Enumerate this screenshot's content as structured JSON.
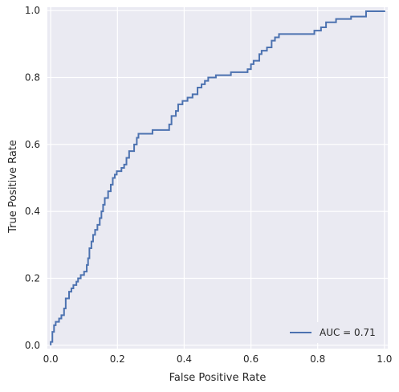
{
  "chart_data": {
    "type": "line",
    "xlabel": "False Positive Rate",
    "ylabel": "True Positive Rate",
    "xlim": [
      -0.01,
      1.01
    ],
    "ylim": [
      -0.01,
      1.01
    ],
    "x_ticks": [
      "0.0",
      "0.2",
      "0.4",
      "0.6",
      "0.8",
      "1.0"
    ],
    "y_ticks": [
      "0.0",
      "0.2",
      "0.4",
      "0.6",
      "0.8",
      "1.0"
    ],
    "grid": true,
    "legend_position": "lower-right",
    "background_color": "#eaeaf2",
    "grid_color": "#ffffff",
    "series": [
      {
        "name": "AUC = 0.71",
        "color": "#4c72b0",
        "points": [
          [
            0.0,
            0.0
          ],
          [
            0.0,
            0.01
          ],
          [
            0.005,
            0.01
          ],
          [
            0.005,
            0.04
          ],
          [
            0.01,
            0.04
          ],
          [
            0.01,
            0.06
          ],
          [
            0.015,
            0.06
          ],
          [
            0.015,
            0.07
          ],
          [
            0.025,
            0.07
          ],
          [
            0.025,
            0.08
          ],
          [
            0.032,
            0.08
          ],
          [
            0.032,
            0.09
          ],
          [
            0.04,
            0.09
          ],
          [
            0.04,
            0.11
          ],
          [
            0.045,
            0.11
          ],
          [
            0.045,
            0.14
          ],
          [
            0.055,
            0.14
          ],
          [
            0.055,
            0.16
          ],
          [
            0.062,
            0.16
          ],
          [
            0.062,
            0.17
          ],
          [
            0.068,
            0.17
          ],
          [
            0.068,
            0.18
          ],
          [
            0.077,
            0.18
          ],
          [
            0.077,
            0.19
          ],
          [
            0.082,
            0.19
          ],
          [
            0.082,
            0.2
          ],
          [
            0.09,
            0.2
          ],
          [
            0.09,
            0.21
          ],
          [
            0.1,
            0.21
          ],
          [
            0.1,
            0.22
          ],
          [
            0.108,
            0.22
          ],
          [
            0.108,
            0.24
          ],
          [
            0.112,
            0.24
          ],
          [
            0.112,
            0.26
          ],
          [
            0.116,
            0.26
          ],
          [
            0.116,
            0.29
          ],
          [
            0.122,
            0.29
          ],
          [
            0.122,
            0.31
          ],
          [
            0.127,
            0.31
          ],
          [
            0.127,
            0.33
          ],
          [
            0.133,
            0.33
          ],
          [
            0.133,
            0.345
          ],
          [
            0.14,
            0.345
          ],
          [
            0.14,
            0.36
          ],
          [
            0.147,
            0.36
          ],
          [
            0.147,
            0.38
          ],
          [
            0.152,
            0.38
          ],
          [
            0.152,
            0.4
          ],
          [
            0.157,
            0.4
          ],
          [
            0.157,
            0.42
          ],
          [
            0.162,
            0.42
          ],
          [
            0.162,
            0.44
          ],
          [
            0.172,
            0.44
          ],
          [
            0.172,
            0.46
          ],
          [
            0.18,
            0.46
          ],
          [
            0.18,
            0.48
          ],
          [
            0.186,
            0.48
          ],
          [
            0.186,
            0.5
          ],
          [
            0.192,
            0.5
          ],
          [
            0.192,
            0.51
          ],
          [
            0.198,
            0.51
          ],
          [
            0.198,
            0.52
          ],
          [
            0.212,
            0.52
          ],
          [
            0.212,
            0.53
          ],
          [
            0.22,
            0.53
          ],
          [
            0.22,
            0.54
          ],
          [
            0.227,
            0.54
          ],
          [
            0.227,
            0.56
          ],
          [
            0.235,
            0.56
          ],
          [
            0.235,
            0.58
          ],
          [
            0.25,
            0.58
          ],
          [
            0.25,
            0.6
          ],
          [
            0.258,
            0.6
          ],
          [
            0.258,
            0.62
          ],
          [
            0.263,
            0.62
          ],
          [
            0.263,
            0.632
          ],
          [
            0.305,
            0.632
          ],
          [
            0.305,
            0.643
          ],
          [
            0.355,
            0.643
          ],
          [
            0.355,
            0.66
          ],
          [
            0.362,
            0.66
          ],
          [
            0.362,
            0.685
          ],
          [
            0.375,
            0.685
          ],
          [
            0.375,
            0.7
          ],
          [
            0.382,
            0.7
          ],
          [
            0.382,
            0.72
          ],
          [
            0.395,
            0.72
          ],
          [
            0.395,
            0.73
          ],
          [
            0.41,
            0.73
          ],
          [
            0.41,
            0.74
          ],
          [
            0.425,
            0.74
          ],
          [
            0.425,
            0.75
          ],
          [
            0.44,
            0.75
          ],
          [
            0.44,
            0.77
          ],
          [
            0.452,
            0.77
          ],
          [
            0.452,
            0.78
          ],
          [
            0.462,
            0.78
          ],
          [
            0.462,
            0.79
          ],
          [
            0.472,
            0.79
          ],
          [
            0.472,
            0.8
          ],
          [
            0.495,
            0.8
          ],
          [
            0.495,
            0.807
          ],
          [
            0.54,
            0.807
          ],
          [
            0.54,
            0.816
          ],
          [
            0.59,
            0.816
          ],
          [
            0.59,
            0.825
          ],
          [
            0.6,
            0.825
          ],
          [
            0.6,
            0.84
          ],
          [
            0.608,
            0.84
          ],
          [
            0.608,
            0.85
          ],
          [
            0.625,
            0.85
          ],
          [
            0.625,
            0.87
          ],
          [
            0.632,
            0.87
          ],
          [
            0.632,
            0.88
          ],
          [
            0.648,
            0.88
          ],
          [
            0.648,
            0.89
          ],
          [
            0.662,
            0.89
          ],
          [
            0.662,
            0.91
          ],
          [
            0.672,
            0.91
          ],
          [
            0.672,
            0.92
          ],
          [
            0.684,
            0.92
          ],
          [
            0.684,
            0.93
          ],
          [
            0.79,
            0.93
          ],
          [
            0.79,
            0.94
          ],
          [
            0.81,
            0.94
          ],
          [
            0.81,
            0.95
          ],
          [
            0.825,
            0.95
          ],
          [
            0.825,
            0.965
          ],
          [
            0.855,
            0.965
          ],
          [
            0.855,
            0.975
          ],
          [
            0.9,
            0.975
          ],
          [
            0.9,
            0.982
          ],
          [
            0.945,
            0.982
          ],
          [
            0.945,
            0.998
          ],
          [
            1.0,
            0.998
          ],
          [
            1.0,
            1.0
          ]
        ]
      }
    ]
  }
}
